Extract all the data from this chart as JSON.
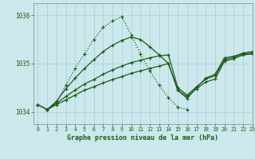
{
  "title": "Graphe pression niveau de la mer (hPa)",
  "background_color": "#cce8ec",
  "line_color": "#1a5c1a",
  "grid_color": "#aacdd4",
  "x_min": -0.5,
  "x_max": 23,
  "y_min": 1033.75,
  "y_max": 1036.25,
  "yticks": [
    1034,
    1035,
    1036
  ],
  "xticks": [
    0,
    1,
    2,
    3,
    4,
    5,
    6,
    7,
    8,
    9,
    10,
    11,
    12,
    13,
    14,
    15,
    16,
    17,
    18,
    19,
    20,
    21,
    22,
    23
  ],
  "dotted_x": [
    0,
    1,
    2,
    3,
    4,
    5,
    6,
    7,
    8,
    9,
    10,
    11,
    12,
    13,
    14,
    15,
    16
  ],
  "dotted_y": [
    1034.15,
    1034.05,
    1034.2,
    1034.55,
    1034.9,
    1035.2,
    1035.5,
    1035.75,
    1035.88,
    1035.97,
    1035.6,
    1035.2,
    1034.85,
    1034.55,
    1034.3,
    1034.1,
    1034.05
  ],
  "solid1_x": [
    0,
    1,
    2,
    3,
    4,
    5,
    6,
    7,
    8,
    9,
    10,
    11,
    12,
    13,
    14,
    15,
    16,
    17,
    18,
    19,
    20,
    21,
    22,
    23
  ],
  "solid1_y": [
    1034.15,
    1034.05,
    1034.15,
    1034.25,
    1034.35,
    1034.45,
    1034.52,
    1034.6,
    1034.67,
    1034.73,
    1034.8,
    1034.85,
    1034.9,
    1034.95,
    1035.0,
    1034.45,
    1034.32,
    1034.48,
    1034.62,
    1034.68,
    1035.05,
    1035.1,
    1035.18,
    1035.2
  ],
  "solid2_x": [
    0,
    1,
    2,
    3,
    4,
    5,
    6,
    7,
    8,
    9,
    10,
    11,
    12,
    13,
    14,
    15,
    16,
    17,
    18,
    19,
    20,
    21,
    22,
    23
  ],
  "solid2_y": [
    1034.15,
    1034.05,
    1034.18,
    1034.32,
    1034.45,
    1034.58,
    1034.67,
    1034.78,
    1034.87,
    1034.95,
    1035.02,
    1035.07,
    1035.12,
    1035.16,
    1035.18,
    1034.5,
    1034.35,
    1034.52,
    1034.68,
    1034.75,
    1035.08,
    1035.13,
    1035.2,
    1035.22
  ],
  "solid3_x": [
    1,
    2,
    3,
    4,
    5,
    6,
    7,
    8,
    9,
    10,
    11,
    12,
    13,
    14,
    15,
    16,
    17,
    18,
    19,
    20,
    21,
    22,
    23
  ],
  "solid3_y": [
    1034.05,
    1034.22,
    1034.48,
    1034.7,
    1034.9,
    1035.08,
    1035.25,
    1035.38,
    1035.48,
    1035.55,
    1035.5,
    1035.35,
    1035.18,
    1035.0,
    1034.45,
    1034.28,
    1034.5,
    1034.7,
    1034.78,
    1035.12,
    1035.15,
    1035.22,
    1035.25
  ]
}
